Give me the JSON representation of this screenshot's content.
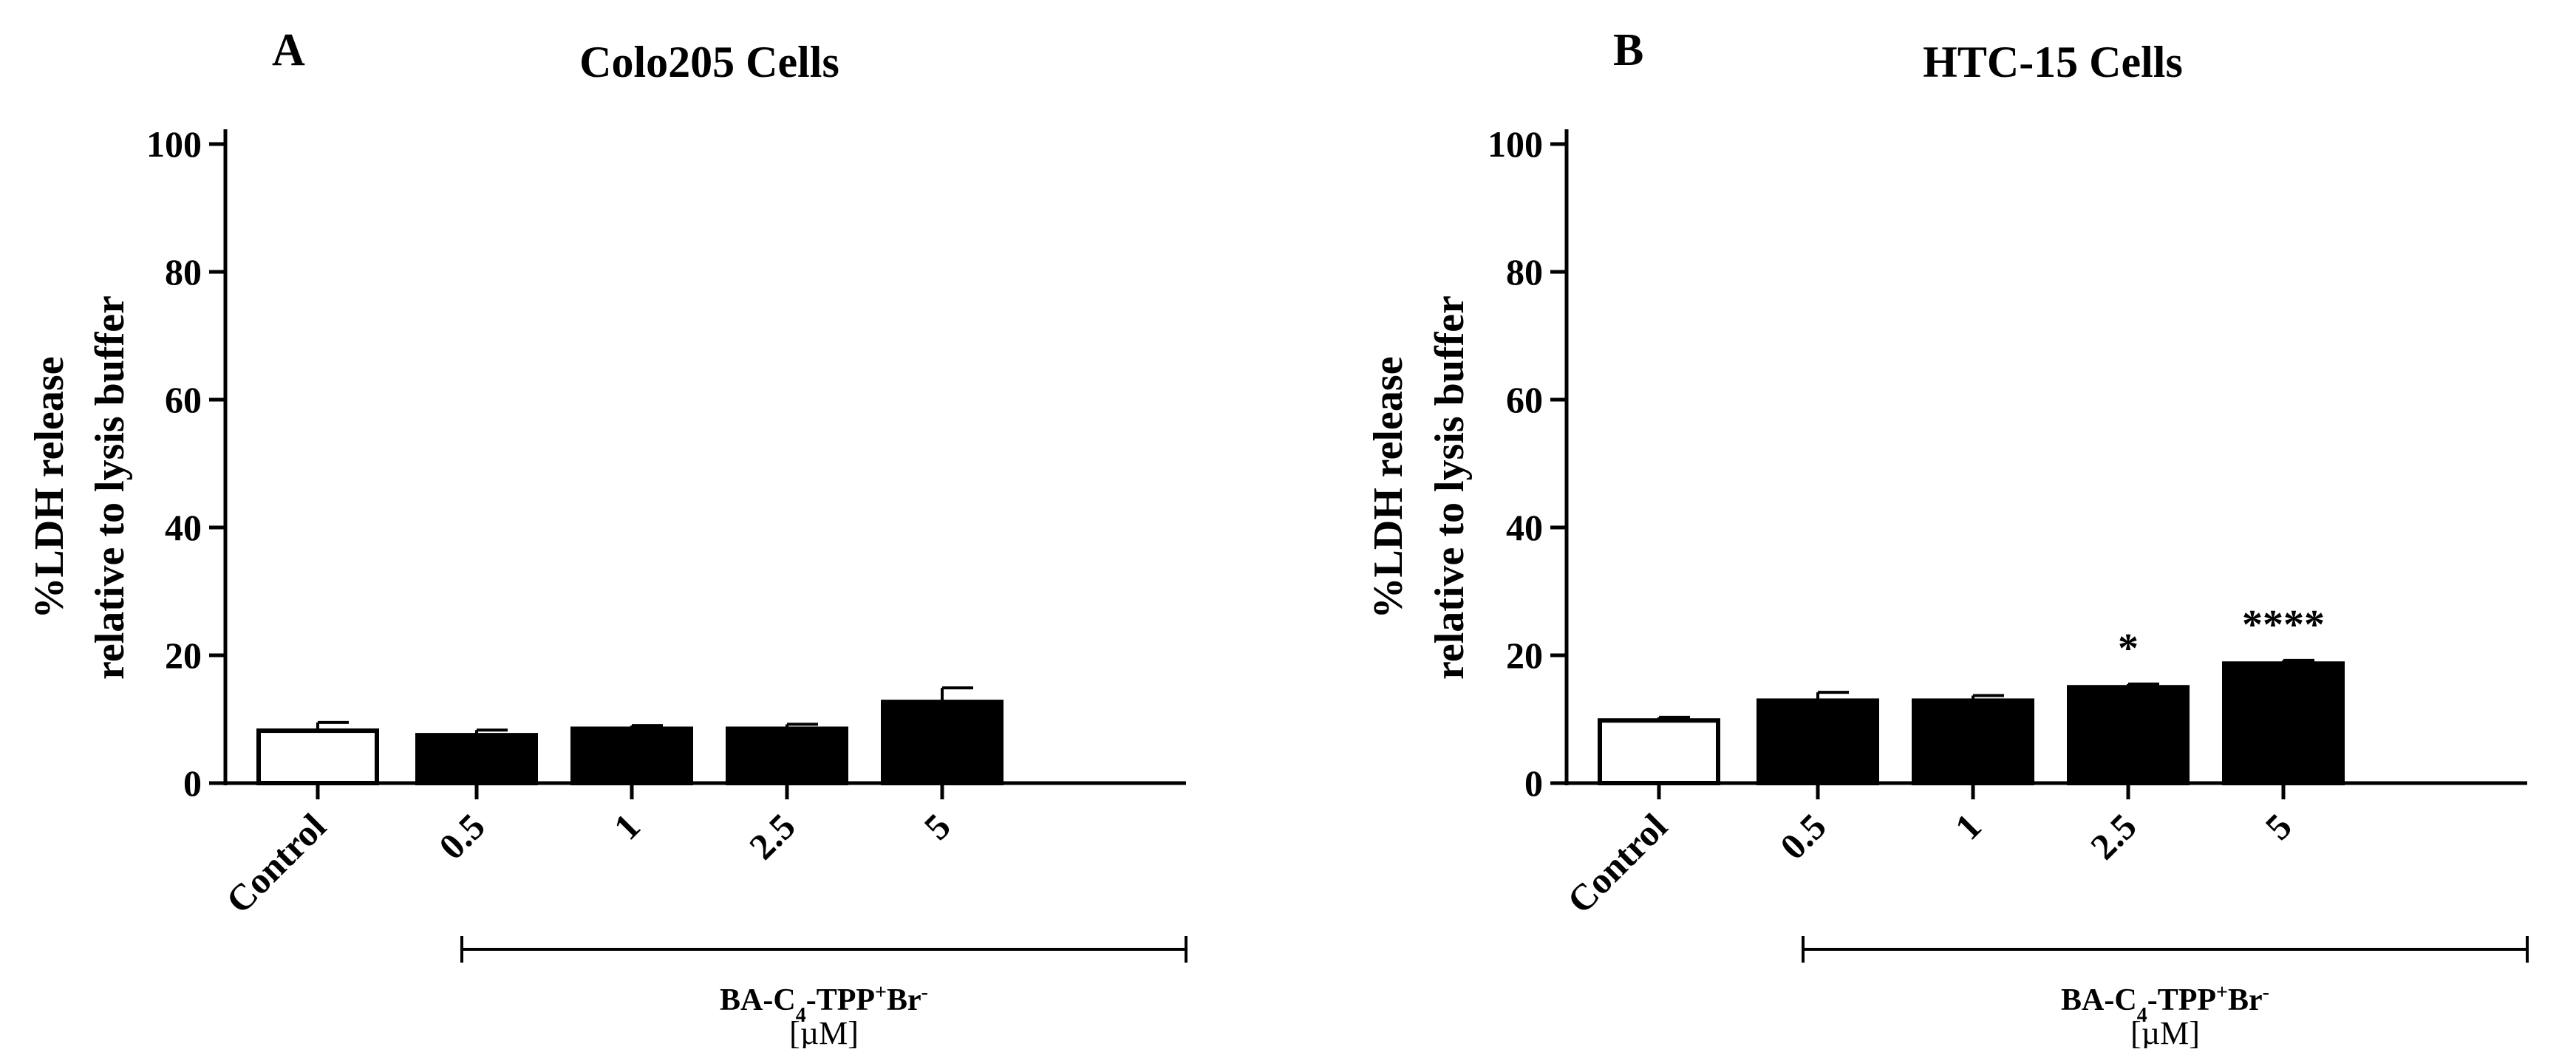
{
  "figure": {
    "compound_label": "BA-C",
    "compound_sub": "4",
    "compound_rest": "-TPP",
    "compound_sup_plus": "+",
    "compound_br": "Br",
    "compound_sup_minus": "-",
    "unit_label": "[µM]"
  },
  "chart_data": [
    {
      "panel_letter": "A",
      "type": "bar",
      "title": "Colo205 Cells",
      "ylabel_line1": "%LDH release",
      "ylabel_line2": "relative to lysis buffer",
      "ylim": [
        0,
        100
      ],
      "yticks": [
        "0",
        "20",
        "40",
        "60",
        "80",
        "100"
      ],
      "categories": [
        "Control",
        "0.5",
        "1",
        "2.5",
        "5"
      ],
      "values": [
        8.2,
        7.5,
        8.5,
        8.5,
        12.7
      ],
      "errors": [
        1.3,
        0.8,
        0.5,
        0.7,
        2.2
      ],
      "bar_fills": [
        "#ffffff",
        "#000000",
        "#000000",
        "#000000",
        "#000000"
      ],
      "significance": [
        "",
        "",
        "",
        "",
        ""
      ]
    },
    {
      "panel_letter": "B",
      "type": "bar",
      "title": "HTC-15 Cells",
      "ylabel_line1": "%LDH release",
      "ylabel_line2": "relative to lysis buffer",
      "ylim": [
        0,
        100
      ],
      "yticks": [
        "0",
        "20",
        "40",
        "60",
        "80",
        "100"
      ],
      "categories": [
        "Control",
        "0.5",
        "1",
        "2.5",
        "5"
      ],
      "values": [
        9.8,
        12.9,
        12.9,
        15.0,
        18.7
      ],
      "errors": [
        0.5,
        1.3,
        0.8,
        0.5,
        0.5
      ],
      "bar_fills": [
        "#ffffff",
        "#000000",
        "#000000",
        "#000000",
        "#000000"
      ],
      "significance": [
        "",
        "",
        "",
        "*",
        "****"
      ]
    }
  ]
}
